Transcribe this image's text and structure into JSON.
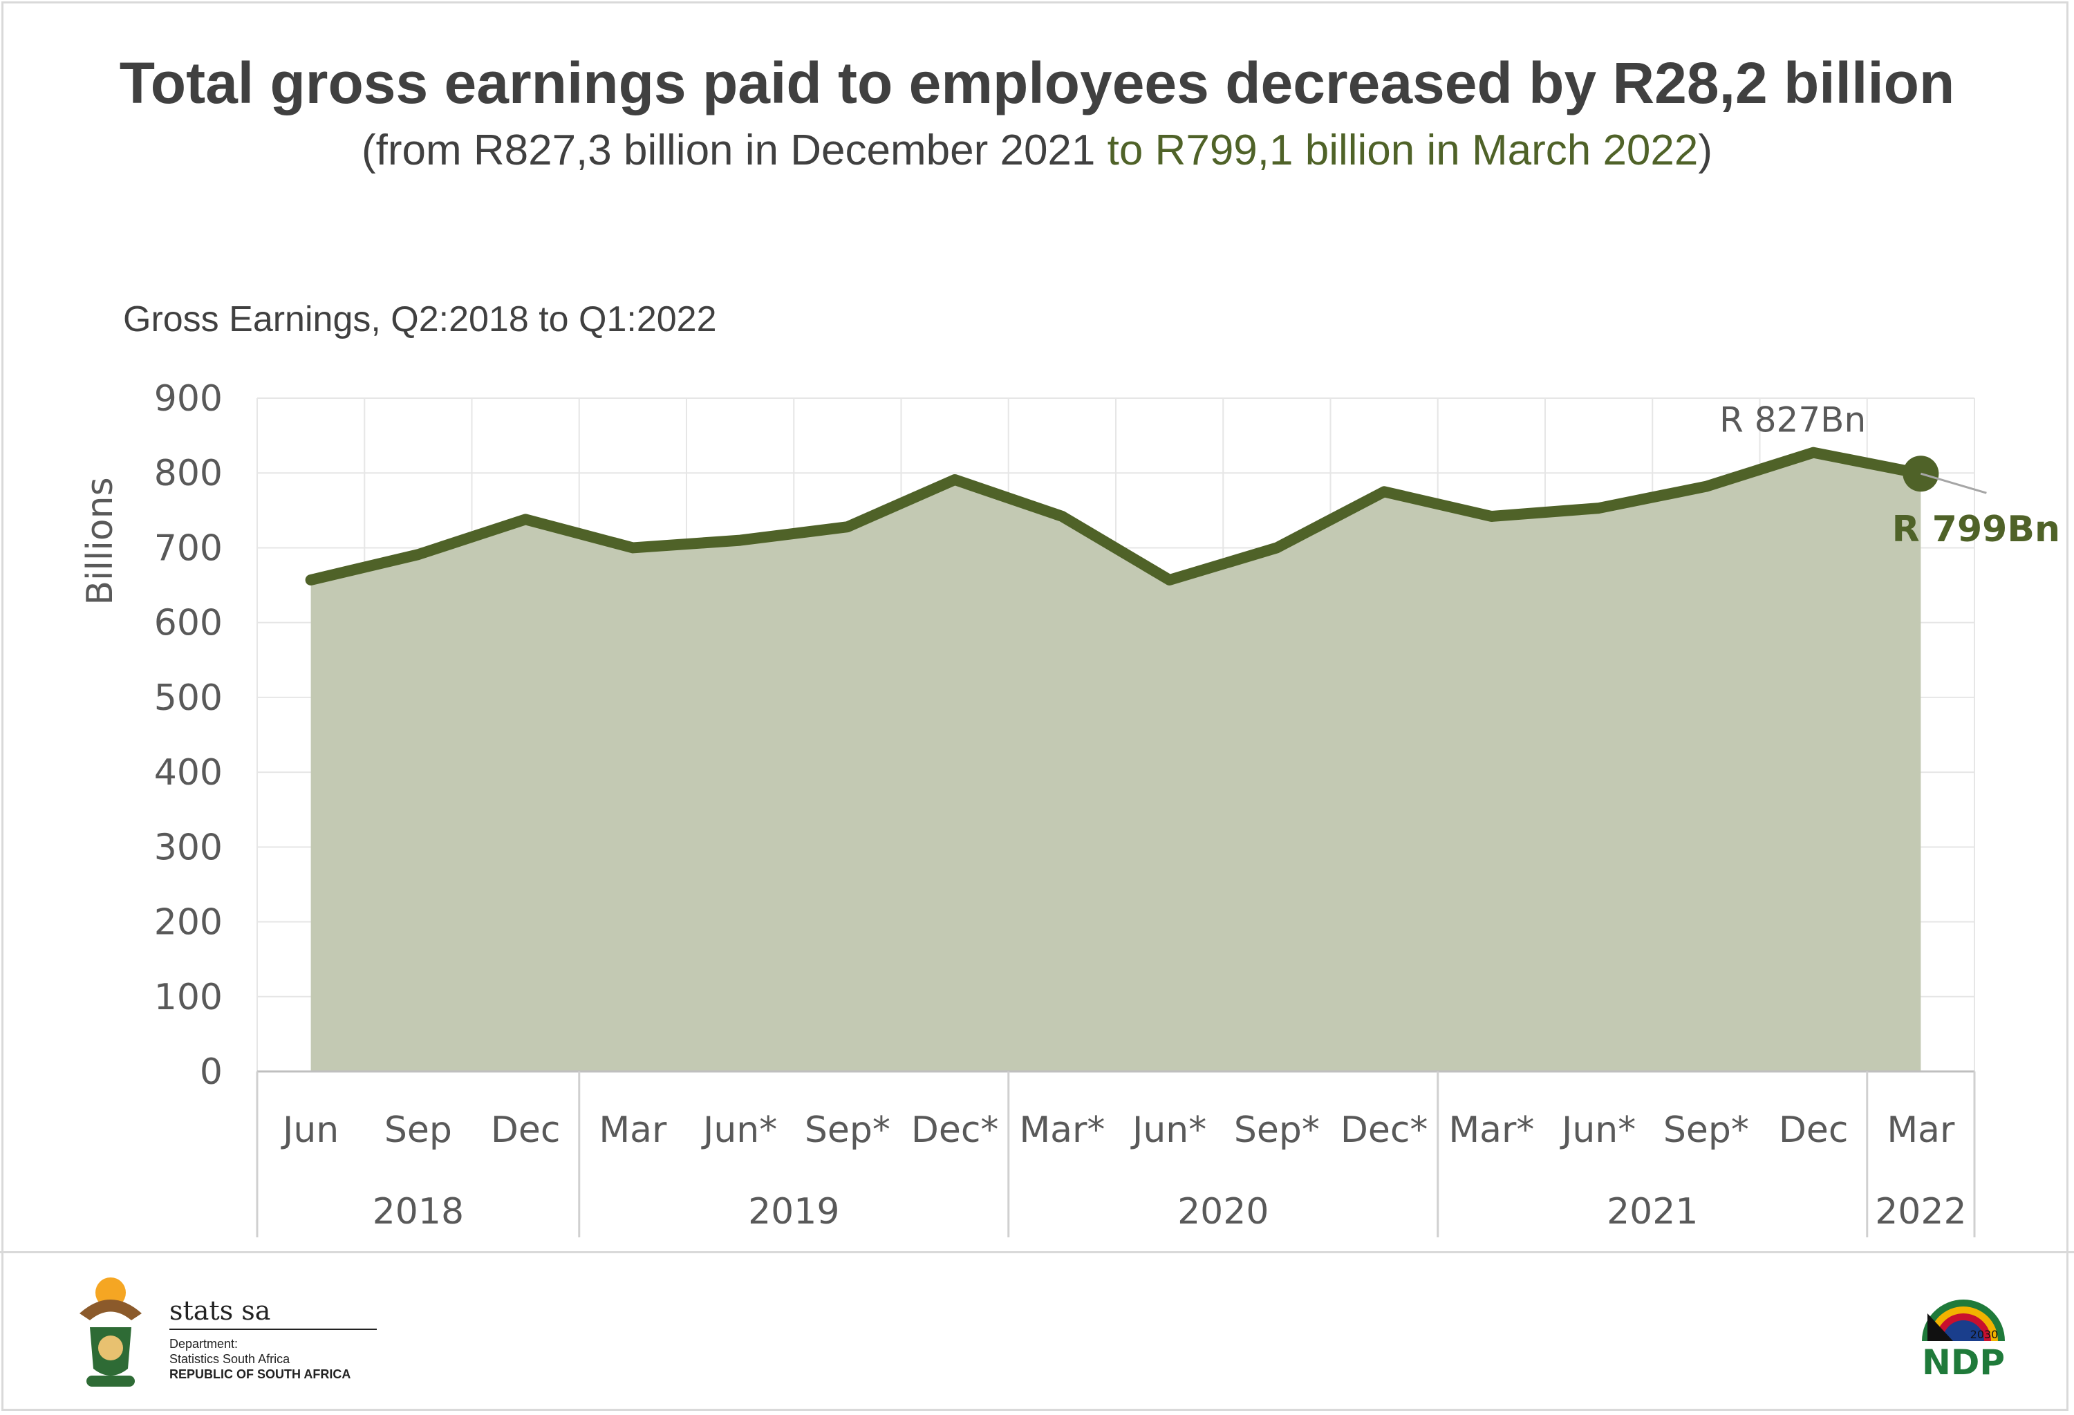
{
  "header": {
    "title": "Total gross earnings paid to employees decreased by R28,2 billion",
    "subtitle_part1": "(from R827,3 billion in December 2021 ",
    "subtitle_part2": "to R799,1 billion in March 2022",
    "subtitle_part3": ")"
  },
  "chart_data": {
    "type": "area",
    "title": "Gross Earnings, Q2:2018 to Q1:2022",
    "ylabel": "Billions",
    "ylim": [
      0,
      900
    ],
    "yticks": [
      0,
      100,
      200,
      300,
      400,
      500,
      600,
      700,
      800,
      900
    ],
    "grid": true,
    "categories": [
      "Jun",
      "Sep",
      "Dec",
      "Mar",
      "Jun*",
      "Sep*",
      "Dec*",
      "Mar*",
      "Jun*",
      "Sep*",
      "Dec*",
      "Mar*",
      "Jun*",
      "Sep*",
      "Dec",
      "Mar"
    ],
    "year_groups": [
      {
        "label": "2018",
        "count": 3
      },
      {
        "label": "2019",
        "count": 4
      },
      {
        "label": "2020",
        "count": 4
      },
      {
        "label": "2021",
        "count": 4
      },
      {
        "label": "2022",
        "count": 1
      }
    ],
    "values": [
      657,
      691,
      738,
      700,
      710,
      728,
      791,
      742,
      657,
      700,
      775,
      742,
      753,
      782,
      827.3,
      799.1
    ],
    "annotations": [
      {
        "label": "R 827Bn",
        "index": 14
      },
      {
        "label": "R 799Bn",
        "index": 15
      }
    ],
    "colors": {
      "line": "#4f6228",
      "fill": "#c3c9b3",
      "grid": "#e6e6e6"
    }
  },
  "footer": {
    "stats_name": "stats sa",
    "dept_line1": "Department:",
    "dept_line2": "Statistics South Africa",
    "dept_line3": "REPUBLIC OF SOUTH AFRICA",
    "ndp_text": "NDP",
    "ndp_year": "2030"
  }
}
